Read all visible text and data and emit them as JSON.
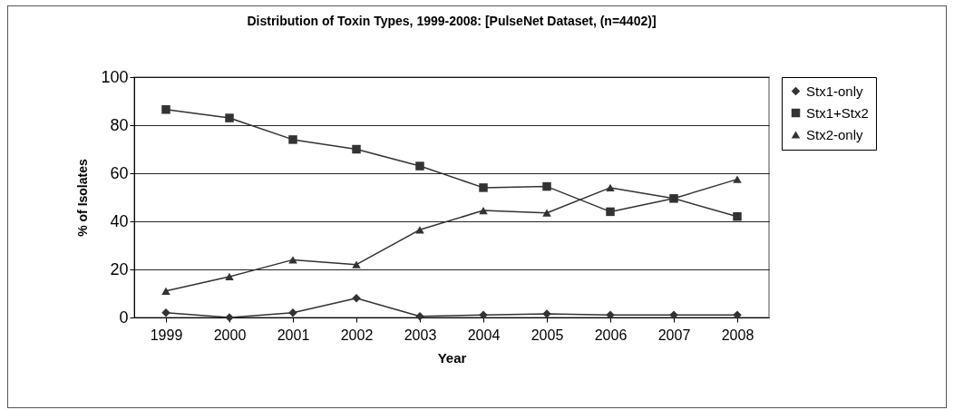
{
  "chart_data": {
    "type": "line",
    "title": "Distribution of Toxin Types, 1999-2008: [PulseNet Dataset, (n=4402)]",
    "xlabel": "Year",
    "ylabel": "% of Isolates",
    "categories": [
      "1999",
      "2000",
      "2001",
      "2002",
      "2003",
      "2004",
      "2005",
      "2006",
      "2007",
      "2008"
    ],
    "series": [
      {
        "name": "Stx1-only",
        "color": "#333333",
        "marker": "diamond",
        "values": [
          2,
          0,
          2,
          8,
          0.5,
          1,
          1.5,
          1,
          1,
          1
        ]
      },
      {
        "name": "Stx1+Stx2",
        "color": "#333333",
        "marker": "square",
        "values": [
          86.5,
          83,
          74,
          70,
          63,
          54,
          54.5,
          44,
          49.5,
          42
        ]
      },
      {
        "name": "Stx2-only",
        "color": "#333333",
        "marker": "triangle",
        "values": [
          11,
          17,
          24,
          22,
          36.5,
          44.5,
          43.5,
          54,
          49.5,
          57.5
        ]
      }
    ],
    "ylim": [
      0,
      100
    ],
    "yticks": [
      0,
      20,
      40,
      60,
      80,
      100
    ],
    "grid": "y",
    "legend": "right",
    "line_style": "solid"
  }
}
